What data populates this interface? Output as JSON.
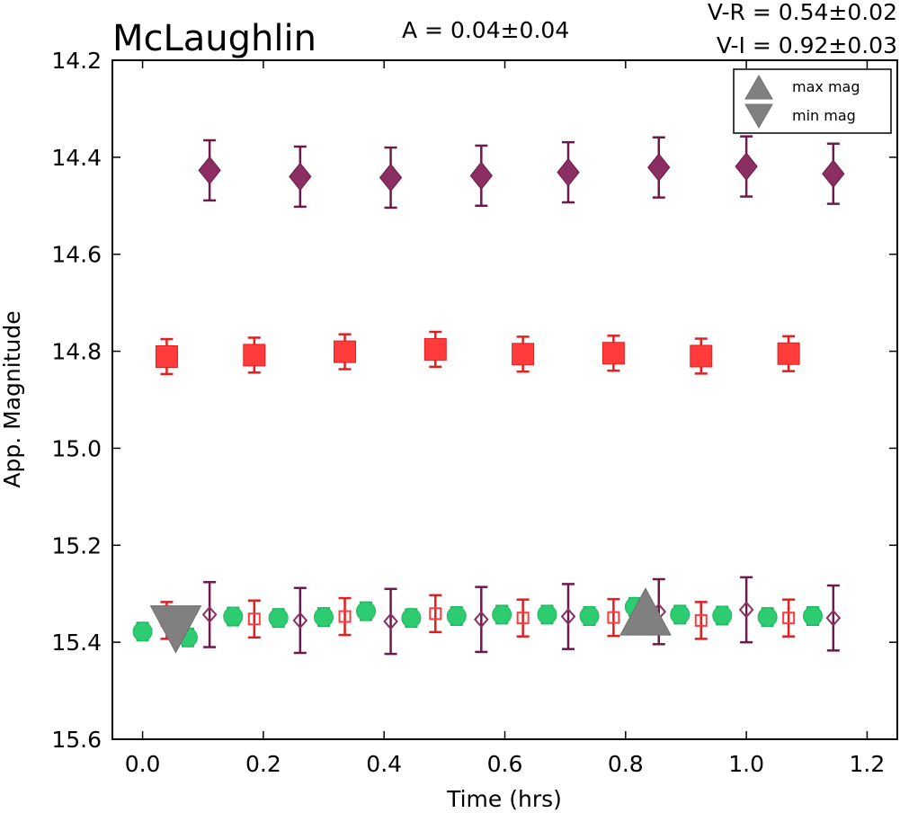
{
  "chart_data": {
    "type": "scatter",
    "title": "McLaughlin",
    "xlabel": "Time (hrs)",
    "ylabel": "App. Magnitude",
    "xlim": [
      -0.05,
      1.25
    ],
    "ylim": [
      15.6,
      14.2
    ],
    "y_inverted": true,
    "xticks": [
      "0.0",
      "0.2",
      "0.4",
      "0.6",
      "0.8",
      "1.0",
      "1.2"
    ],
    "yticks": [
      "14.2",
      "14.4",
      "14.6",
      "14.8",
      "15.0",
      "15.2",
      "15.4",
      "15.6"
    ],
    "grid": false,
    "legend_position": "top-right",
    "annotations": {
      "amplitude": "A  = 0.04±0.04",
      "v_minus_r": "V-R = 0.54±0.02",
      "v_minus_i": "V-I  = 0.92±0.03"
    },
    "legend": [
      {
        "label": "max mag",
        "marker": "triangle-up",
        "color": "#808080"
      },
      {
        "label": "min mag",
        "marker": "triangle-down",
        "color": "#808080"
      }
    ],
    "series": [
      {
        "marker": "diamond",
        "filled": true,
        "color": "#8b2e62",
        "edge": "#6b1a4a",
        "x": [
          0.111,
          0.261,
          0.411,
          0.561,
          0.705,
          0.855,
          1.0,
          1.144
        ],
        "y": [
          14.427,
          14.44,
          14.442,
          14.438,
          14.431,
          14.421,
          14.419,
          14.434
        ],
        "err": [
          0.062,
          0.062,
          0.062,
          0.062,
          0.062,
          0.062,
          0.062,
          0.062
        ]
      },
      {
        "marker": "square",
        "filled": true,
        "color": "#ff3b3b",
        "edge": "#e01f1f",
        "x": [
          0.04,
          0.185,
          0.335,
          0.485,
          0.63,
          0.78,
          0.925,
          1.07
        ],
        "y": [
          14.811,
          14.808,
          14.801,
          14.796,
          14.806,
          14.804,
          14.81,
          14.805
        ],
        "err": [
          0.036,
          0.036,
          0.036,
          0.036,
          0.036,
          0.036,
          0.036,
          0.036
        ]
      },
      {
        "marker": "circle",
        "filled": true,
        "color": "#2ecc71",
        "edge": "#1fb860",
        "x": [
          0.0,
          0.075,
          0.15,
          0.225,
          0.3,
          0.37,
          0.445,
          0.52,
          0.595,
          0.67,
          0.74,
          0.815,
          0.89,
          0.96,
          1.035,
          1.11
        ],
        "y": [
          15.378,
          15.39,
          15.347,
          15.35,
          15.348,
          15.336,
          15.35,
          15.346,
          15.343,
          15.343,
          15.346,
          15.327,
          15.343,
          15.345,
          15.348,
          15.346
        ],
        "err": [
          0.018,
          0.018,
          0.018,
          0.018,
          0.018,
          0.018,
          0.018,
          0.018,
          0.018,
          0.018,
          0.018,
          0.018,
          0.018,
          0.018,
          0.018,
          0.018
        ]
      },
      {
        "marker": "square",
        "filled": false,
        "color": "#ff3b3b",
        "edge": "#e01f1f",
        "x": [
          0.04,
          0.185,
          0.335,
          0.485,
          0.63,
          0.78,
          0.925,
          1.07
        ],
        "y": [
          15.355,
          15.352,
          15.347,
          15.341,
          15.35,
          15.349,
          15.355,
          15.35
        ],
        "err": [
          0.038,
          0.038,
          0.038,
          0.038,
          0.038,
          0.038,
          0.038,
          0.038
        ]
      },
      {
        "marker": "diamond",
        "filled": false,
        "color": "#8b2e62",
        "edge": "#6b1a4a",
        "x": [
          0.111,
          0.261,
          0.411,
          0.561,
          0.705,
          0.855,
          1.0,
          1.144
        ],
        "y": [
          15.343,
          15.355,
          15.357,
          15.353,
          15.347,
          15.337,
          15.333,
          15.35
        ],
        "err": [
          0.067,
          0.067,
          0.067,
          0.067,
          0.067,
          0.067,
          0.067,
          0.067
        ]
      }
    ],
    "extrema": [
      {
        "label": "min mag",
        "marker": "triangle-down",
        "x": 0.055,
        "y": 15.373,
        "color": "#808080"
      },
      {
        "label": "max mag",
        "marker": "triangle-up",
        "x": 0.833,
        "y": 15.337,
        "color": "#808080"
      }
    ]
  }
}
